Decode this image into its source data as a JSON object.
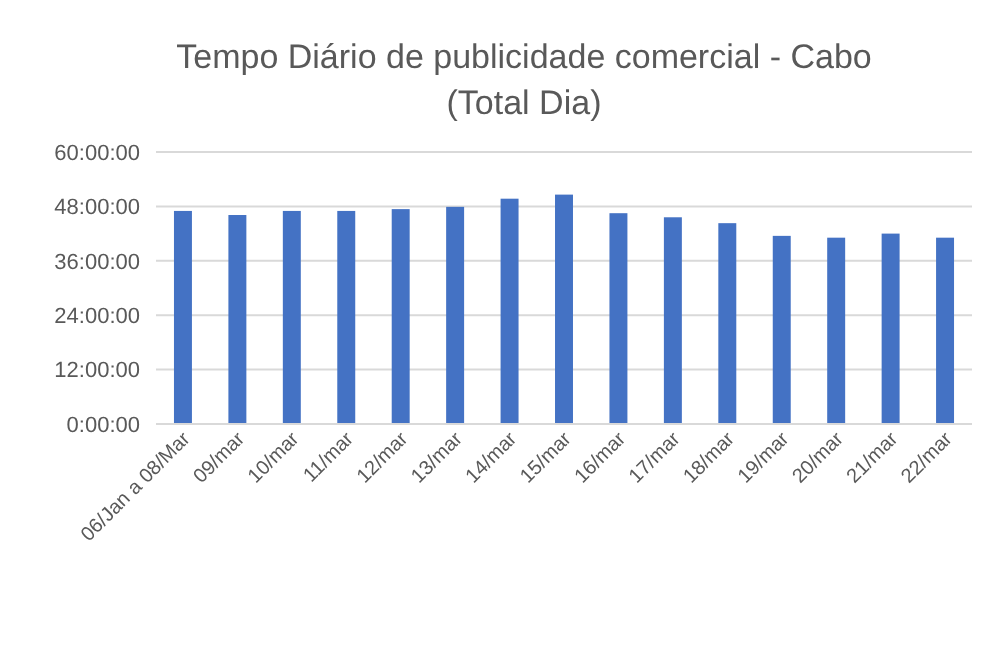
{
  "chart_data": {
    "type": "bar",
    "title": "Tempo Diário de publicidade comercial - Cabo\n(Total Dia)",
    "categories": [
      "06/Jan a 08/Mar",
      "09/mar",
      "10/mar",
      "11/mar",
      "12/mar",
      "13/mar",
      "14/mar",
      "15/mar",
      "16/mar",
      "17/mar",
      "18/mar",
      "19/mar",
      "20/mar",
      "21/mar",
      "22/mar"
    ],
    "values": [
      47.0,
      46.1,
      47.0,
      47.0,
      47.4,
      47.9,
      49.7,
      50.6,
      46.5,
      45.6,
      44.3,
      41.5,
      41.1,
      42.0,
      41.1
    ],
    "color": "#4472c4",
    "ylim": [
      0,
      60
    ],
    "yticks": [
      {
        "value": 0,
        "label": "0:00:00"
      },
      {
        "value": 12,
        "label": "12:00:00"
      },
      {
        "value": 24,
        "label": "24:00:00"
      },
      {
        "value": 36,
        "label": "36:00:00"
      },
      {
        "value": 48,
        "label": "48:00:00"
      },
      {
        "value": 60,
        "label": "60:00:00"
      }
    ],
    "grid": "y"
  }
}
